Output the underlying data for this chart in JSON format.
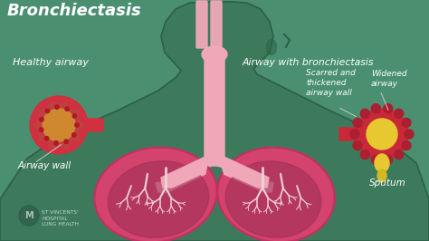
{
  "title": "Bronchiectasis",
  "background_color": "#4a9070",
  "body_color": "#3d7a5c",
  "body_outline_color": "#2d6048",
  "lung_color": "#d4436e",
  "lung_dark": "#a03058",
  "lung_border": "#c03060",
  "airway_pink": "#f0a8b8",
  "airway_pink_dark": "#e090a0",
  "healthy_airway_label": "Healthy airway",
  "airway_wall_label": "Airway wall",
  "right_label": "Airway with bronchiectasis",
  "scarred_label": "Scarred and\nthickened\nairway wall",
  "widened_label": "Widened\nairway",
  "sputum_label": "Sputum",
  "logo_text": "ST VINCENTS'\nHOSPITAL\nLUNG HEALTH",
  "label_color": "#ffffff",
  "line_color": "#c8c8c8",
  "healthy_outer_red": "#d03040",
  "healthy_inner_orange": "#d08830",
  "healthy_dots": "#b02030",
  "disease_outer_red": "#c82838",
  "disease_yellow": "#e8c830",
  "disease_sputum": "#d4b820",
  "branch_color": "#e8a0b0",
  "branch_white": "#f0d0d8"
}
